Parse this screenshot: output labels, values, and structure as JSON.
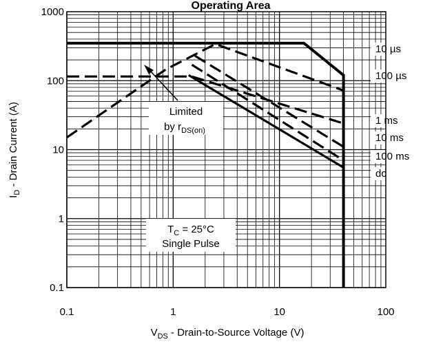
{
  "chart_data": {
    "type": "line",
    "title": "Operating Area",
    "xlabel": {
      "main": "V",
      "sub": "DS",
      "rest": "  -  Drain-to-Source Voltage (V)"
    },
    "ylabel": {
      "main": "I",
      "sub": "D",
      "rest": " - Drain Current (A)"
    },
    "x_scale": "log",
    "y_scale": "log",
    "xlim": [
      0.1,
      100
    ],
    "ylim": [
      0.1,
      1000
    ],
    "grid": true,
    "x_ticks": [
      {
        "value": 0.1,
        "label": "0.1"
      },
      {
        "value": 1,
        "label": "1"
      },
      {
        "value": 10,
        "label": "10"
      },
      {
        "value": 100,
        "label": "100"
      }
    ],
    "y_ticks": [
      {
        "value": 0.1,
        "label": "0.1"
      },
      {
        "value": 1,
        "label": "1"
      },
      {
        "value": 10,
        "label": "10"
      },
      {
        "value": 100,
        "label": "100"
      },
      {
        "value": 1000,
        "label": "1000"
      }
    ],
    "series": [
      {
        "name": "10 µs",
        "label": "10 µs",
        "style": "solid",
        "width": 4,
        "x": [
          0.1,
          17,
          40,
          40
        ],
        "y": [
          350,
          350,
          120,
          0.1
        ]
      },
      {
        "style": "dashed",
        "width": 3.2,
        "x": [
          0.1,
          0.85,
          2.5,
          40,
          40
        ],
        "y": [
          15,
          145,
          340,
          72,
          0.1
        ]
      },
      {
        "name": "100 µs",
        "label": "100 µs",
        "style": "dashed",
        "width": 3.2,
        "x": [
          0.1,
          1.5,
          40,
          40
        ],
        "y": [
          115,
          115,
          24,
          0.1
        ]
      },
      {
        "name": "1 ms",
        "label": "1 ms",
        "style": "dashed",
        "width": 3.2,
        "x": [
          1.6,
          40,
          40
        ],
        "y": [
          230,
          11,
          0.1
        ]
      },
      {
        "name": "10 ms",
        "label": "10 ms",
        "style": "dashed",
        "width": 3.2,
        "x": [
          1.5,
          40,
          40
        ],
        "y": [
          170,
          7,
          0.1
        ]
      },
      {
        "name": "100 ms",
        "label": "100 ms",
        "style": "solid",
        "width": 3.2,
        "x": [
          1.4,
          40,
          40
        ],
        "y": [
          120,
          5.5,
          0.1
        ]
      },
      {
        "name": "dc",
        "label": "dc",
        "style": "dashed",
        "width": 3.2,
        "x": [
          40,
          40
        ],
        "y": [
          4.5,
          0.1
        ]
      }
    ],
    "annotations": {
      "limited": {
        "line1": "Limited",
        "line2_main": "by r",
        "line2_sub": "DS(on)"
      },
      "conditions": {
        "line1_main": "T",
        "line1_sub": "C",
        "line1_rest": " = 25°C",
        "line2": "Single Pulse"
      }
    }
  }
}
